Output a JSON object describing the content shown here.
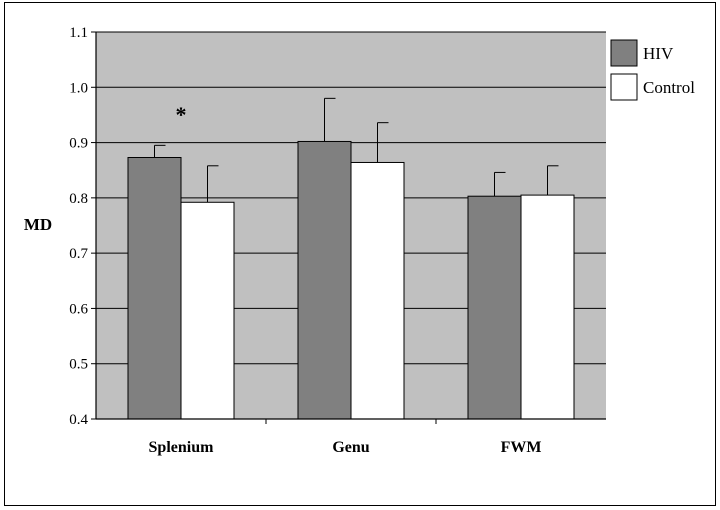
{
  "chart_data": {
    "type": "bar",
    "title": "",
    "xlabel": "",
    "ylabel": "MD",
    "ylim": [
      0.4,
      1.1
    ],
    "yticks": [
      "0.4",
      "0.5",
      "0.6",
      "0.7",
      "0.8",
      "0.9",
      "1.0",
      "1.1"
    ],
    "categories": [
      "Splenium",
      "Genu",
      "FWM"
    ],
    "series": [
      {
        "name": "HIV",
        "color": "#808080",
        "values": [
          0.873,
          0.902,
          0.803
        ],
        "errors": [
          0.022,
          0.078,
          0.043
        ]
      },
      {
        "name": "Control",
        "color": "#ffffff",
        "values": [
          0.792,
          0.864,
          0.805
        ],
        "errors": [
          0.066,
          0.072,
          0.053
        ]
      }
    ],
    "annotations": [
      {
        "text": "*",
        "category": "Splenium"
      }
    ],
    "grid": true,
    "plot_background": "#c0c0c0",
    "legend_position": "top-right"
  }
}
